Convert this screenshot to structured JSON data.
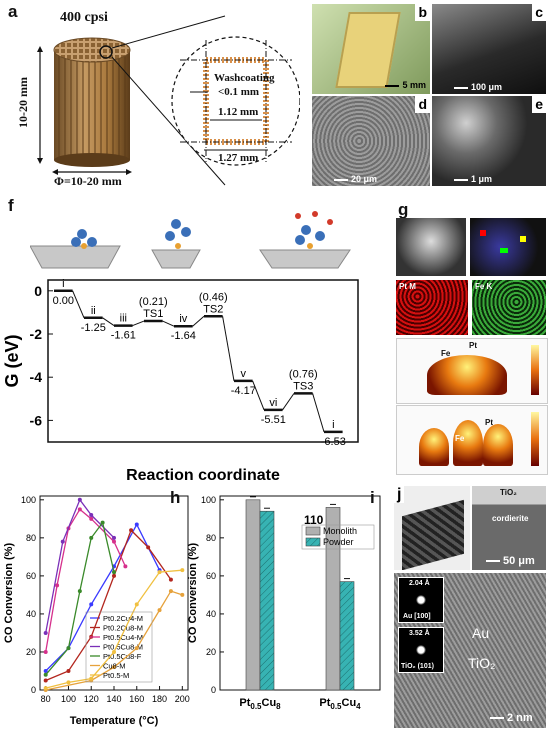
{
  "panels": {
    "a": {
      "label": "a",
      "cpsi": "400 cpsi",
      "height_dim": "10-20 mm",
      "diameter_dim": "Φ=10-20 mm",
      "washcoating": "Washcoating",
      "wash_thickness": "<0.1 mm",
      "inner_dim": "1.12 mm",
      "outer_dim": "1.27 mm"
    },
    "b": {
      "label": "b",
      "scale": "5 mm"
    },
    "c": {
      "label": "c",
      "scale": "100 μm"
    },
    "d": {
      "label": "d",
      "scale": "20 μm"
    },
    "e": {
      "label": "e",
      "scale": "1 μm"
    },
    "f": {
      "label": "f",
      "ylabel": "G (eV)",
      "xlabel": "Reaction coordinate"
    },
    "g": {
      "label": "g",
      "map1": "Pt M",
      "map2": "Fe K",
      "fe": "Fe",
      "pt": "Pt"
    },
    "h": {
      "label": "h"
    },
    "i": {
      "label": "i"
    },
    "j": {
      "label": "j",
      "tio2": "TiO₂",
      "cordierite": "cordierite",
      "scale_top": "50 μm",
      "d1": "2.04 Å",
      "d1_label": "Au [100]",
      "d2": "3.52 Å",
      "d2_label": "TiO₂ (101)",
      "au": "Au",
      "tio2_big": "TiO₂",
      "scale_bottom": "2 nm"
    }
  },
  "chart_data": [
    {
      "type": "line",
      "panel": "f",
      "ylabel": "G (eV)",
      "xlabel": "Reaction coordinate",
      "ylim": [
        -7,
        0.5
      ],
      "yticks": [
        0,
        -2,
        -4,
        -6
      ],
      "states": [
        {
          "name": "i",
          "value": 0.0,
          "label": "0.00"
        },
        {
          "name": "ii",
          "value": -1.25,
          "label": "-1.25"
        },
        {
          "name": "iii",
          "value": -1.61,
          "label": "-1.61"
        },
        {
          "name": "TS1",
          "value": 0.21,
          "label": "(0.21)",
          "ts": true
        },
        {
          "name": "iv",
          "value": -1.64,
          "label": "-1.64"
        },
        {
          "name": "TS2",
          "value": 0.46,
          "label": "(0.46)",
          "ts": true
        },
        {
          "name": "v",
          "value": -4.17,
          "label": "-4.17"
        },
        {
          "name": "vi",
          "value": -5.51,
          "label": "-5.51"
        },
        {
          "name": "TS3",
          "value": 0.76,
          "label": "(0.76)",
          "ts": true
        },
        {
          "name": "i",
          "value": -6.53,
          "label": "-6.53"
        }
      ]
    },
    {
      "type": "line",
      "panel": "h",
      "xlabel": "Temperature (°C)",
      "ylabel": "CO Conversion (%)",
      "xlim": [
        75,
        205
      ],
      "ylim": [
        0,
        102
      ],
      "xticks": [
        80,
        100,
        120,
        140,
        160,
        180,
        200
      ],
      "yticks": [
        0,
        20,
        40,
        60,
        80,
        100
      ],
      "series": [
        {
          "name": "Pt0.2Cu4-M",
          "color": "#3a3aff",
          "x": [
            80,
            100,
            120,
            140,
            160,
            180
          ],
          "y": [
            10,
            22,
            45,
            65,
            87,
            63
          ]
        },
        {
          "name": "Pt0.2Cu8-M",
          "color": "#b3261e",
          "x": [
            80,
            100,
            120,
            140,
            155,
            170,
            190
          ],
          "y": [
            5,
            10,
            28,
            60,
            84,
            75,
            58
          ]
        },
        {
          "name": "Pt0.5Cu4-M",
          "color": "#d6308c",
          "x": [
            80,
            90,
            100,
            110,
            120,
            140,
            150
          ],
          "y": [
            20,
            55,
            85,
            95,
            90,
            78,
            65
          ]
        },
        {
          "name": "Pt0.5Cu8-M",
          "color": "#7a2fb8",
          "x": [
            80,
            95,
            110,
            120,
            140
          ],
          "y": [
            30,
            78,
            100,
            92,
            80
          ]
        },
        {
          "name": "Pt0.5Cu8-F",
          "color": "#3a8a2a",
          "x": [
            80,
            100,
            110,
            120,
            130,
            140
          ],
          "y": [
            8,
            22,
            52,
            80,
            88,
            62
          ]
        },
        {
          "name": "Cu8-M",
          "color": "#e6a23c",
          "x": [
            80,
            120,
            140,
            160,
            180,
            190,
            200
          ],
          "y": [
            0,
            5,
            12,
            22,
            42,
            52,
            50
          ]
        },
        {
          "name": "Pt0.5-M",
          "color": "#f0c040",
          "x": [
            80,
            100,
            120,
            140,
            160,
            180,
            200
          ],
          "y": [
            1,
            4,
            6,
            20,
            45,
            62,
            63
          ]
        }
      ]
    },
    {
      "type": "bar",
      "panel": "i",
      "annotation": "110 °C",
      "ylabel": "CO Conversion (%)",
      "ylim": [
        0,
        102
      ],
      "yticks": [
        0,
        20,
        40,
        60,
        80,
        100
      ],
      "categories": [
        "Pt0.5Cu8",
        "Pt0.5Cu4"
      ],
      "category_main": [
        "Pt",
        "Pt"
      ],
      "category_sub1": [
        "0.5",
        "0.5"
      ],
      "category_mid": [
        "Cu",
        "Cu"
      ],
      "category_sub2": [
        "8",
        "4"
      ],
      "series": [
        {
          "name": "Monolith",
          "color": "#b0b0b0",
          "values": [
            100,
            96
          ]
        },
        {
          "name": "Powder",
          "color": "#37b3b3",
          "values": [
            94,
            57
          ]
        }
      ]
    }
  ]
}
